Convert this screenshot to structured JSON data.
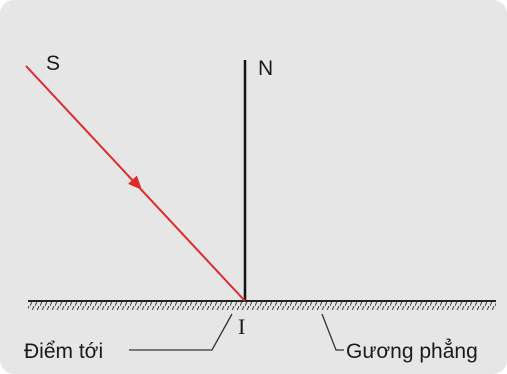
{
  "diagram": {
    "labels": {
      "source": "S",
      "normal": "N",
      "incidence_point": "I",
      "point_caption": "Điểm tới",
      "mirror_caption": "Gương phẳng"
    },
    "colors": {
      "background": "#e6e6e6",
      "ray": "#e02a2a",
      "normal_line": "#111111",
      "mirror": "#222222",
      "leader": "#333333"
    }
  }
}
